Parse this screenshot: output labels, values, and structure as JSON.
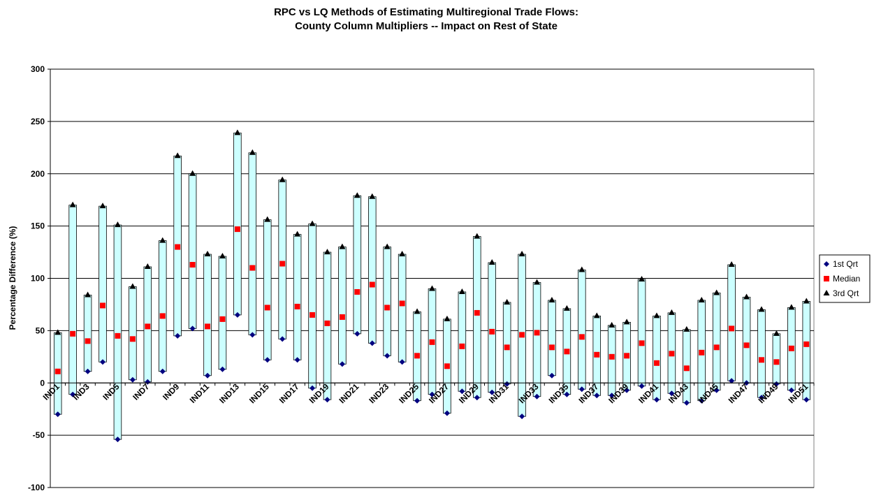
{
  "chart_data": {
    "type": "floating-range",
    "title": "RPC vs LQ Methods of Estimating Multiregional Trade Flows:",
    "subtitle": "County Column Multipliers -- Impact on Rest of State",
    "y_label": "Percentage Difference (%)",
    "categories": [
      "IND1",
      null,
      "IND3",
      null,
      "IND5",
      null,
      "IND7",
      null,
      "IND9",
      null,
      "IND11",
      null,
      "IND13",
      null,
      "IND15",
      null,
      "IND17",
      null,
      "IND19",
      null,
      "IND21",
      null,
      "IND23",
      null,
      "IND25",
      null,
      "IND27",
      null,
      "IND29",
      null,
      "IND31",
      null,
      "IND33",
      null,
      "IND35",
      null,
      "IND37",
      null,
      "IND39",
      null,
      "IND41",
      null,
      "IND43",
      null,
      "IND45",
      null,
      "IND47",
      null,
      "IND49",
      null,
      "IND51"
    ],
    "series": [
      {
        "name": "1st Qrt",
        "color": "#000080",
        "values": [
          -30,
          -11,
          11,
          20,
          -54,
          3,
          1,
          11,
          45,
          52,
          7,
          13,
          65,
          46,
          22,
          42,
          22,
          -5,
          -16,
          18,
          47,
          38,
          26,
          20,
          -17,
          -11,
          -29,
          -8,
          -14,
          -9,
          -1,
          -32,
          -13,
          7,
          -11,
          -6,
          -12,
          -12,
          -7,
          -3,
          -16,
          -10,
          -19,
          -17,
          -7,
          2,
          0,
          -14,
          -1,
          -7,
          -16
        ]
      },
      {
        "name": "Median",
        "color": "#ff0000",
        "values": [
          11,
          47,
          40,
          74,
          45,
          42,
          54,
          64,
          130,
          113,
          54,
          61,
          147,
          110,
          72,
          114,
          73,
          65,
          57,
          63,
          87,
          94,
          72,
          76,
          26,
          39,
          16,
          35,
          67,
          49,
          34,
          46,
          48,
          34,
          30,
          44,
          27,
          25,
          26,
          38,
          19,
          28,
          14,
          29,
          34,
          52,
          36,
          22,
          20,
          33,
          37
        ]
      },
      {
        "name": "3rd Qrt",
        "color": "#000000",
        "values": [
          48,
          170,
          84,
          169,
          151,
          92,
          111,
          136,
          217,
          200,
          123,
          121,
          239,
          220,
          156,
          194,
          142,
          152,
          125,
          130,
          179,
          178,
          130,
          123,
          68,
          90,
          61,
          87,
          140,
          115,
          77,
          123,
          96,
          79,
          71,
          108,
          64,
          55,
          58,
          99,
          64,
          67,
          51,
          79,
          86,
          113,
          82,
          70,
          47,
          72,
          78
        ]
      }
    ],
    "bar_color": "#ccffff",
    "ylim": [
      -100,
      300
    ],
    "yticks": [
      -100,
      -50,
      0,
      50,
      100,
      150,
      200,
      250,
      300
    ],
    "grid": true,
    "legend": "right"
  }
}
